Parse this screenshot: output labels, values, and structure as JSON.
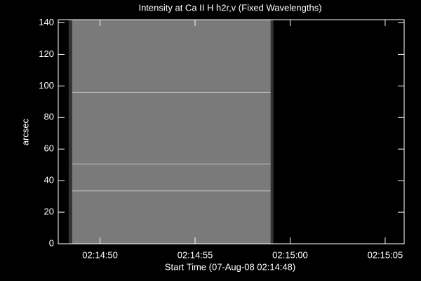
{
  "chart_data": {
    "type": "image",
    "title": "Intensity at Ca II H h2r,v (Fixed Wavelengths)",
    "x_label": "Start Time (07-Aug-08 02:14:48)",
    "y_label": "arcsec",
    "xlim": [
      -0.2,
      18
    ],
    "xticks": [
      {
        "value": 2,
        "label": "02:14:50"
      },
      {
        "value": 7,
        "label": "02:14:55"
      },
      {
        "value": 12,
        "label": "02:15:00"
      },
      {
        "value": 17,
        "label": "02:15:05"
      }
    ],
    "ylim": [
      0,
      142
    ],
    "yticks": [
      0,
      20,
      40,
      60,
      80,
      100,
      120,
      140
    ],
    "image_xlim": [
      0.35,
      11.12
    ],
    "bright_rows": [
      33.5,
      50.5,
      96
    ],
    "color": "#7a7a7a"
  }
}
